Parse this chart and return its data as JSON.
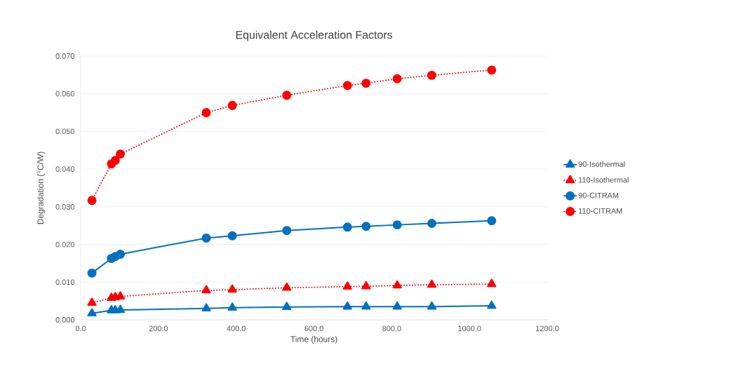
{
  "chart_data": {
    "type": "line",
    "title": "Equivalent Acceleration Factors",
    "xlabel": "Time (hours)",
    "ylabel": "Degradation (°C/W)",
    "x": [
      29,
      79,
      89,
      102,
      323,
      390,
      530,
      686,
      734,
      814,
      903,
      1057
    ],
    "series": [
      {
        "name": "90-Isothermal",
        "color": "#0070c0",
        "marker": "triangle",
        "line_style": "solid",
        "values": [
          0.0017,
          0.0025,
          0.0025,
          0.0026,
          0.003,
          0.0032,
          0.0034,
          0.0035,
          0.0035,
          0.0035,
          0.0035,
          0.0037
        ]
      },
      {
        "name": "110-Isothermal",
        "color": "#ff0000",
        "marker": "triangle",
        "line_style": "dotted",
        "values": [
          0.0045,
          0.0058,
          0.006,
          0.0062,
          0.0078,
          0.008,
          0.0085,
          0.0088,
          0.0089,
          0.0091,
          0.0093,
          0.0095
        ]
      },
      {
        "name": "90-CITRAM",
        "color": "#0070c0",
        "marker": "circle",
        "line_style": "solid",
        "values": [
          0.0124,
          0.0163,
          0.0168,
          0.0174,
          0.0217,
          0.0223,
          0.0237,
          0.0246,
          0.0248,
          0.0252,
          0.0256,
          0.0263
        ]
      },
      {
        "name": "110-CITRAM",
        "color": "#ff0000",
        "marker": "circle",
        "line_style": "dotted",
        "values": [
          0.0317,
          0.0414,
          0.0423,
          0.044,
          0.055,
          0.0569,
          0.0596,
          0.0622,
          0.0628,
          0.064,
          0.0649,
          0.0663
        ]
      }
    ],
    "xlim": [
      0,
      1200
    ],
    "xticks": [
      {
        "value": 0,
        "label": "0.0"
      },
      {
        "value": 200,
        "label": "200.0"
      },
      {
        "value": 400,
        "label": "400.0"
      },
      {
        "value": 600,
        "label": "600.0"
      },
      {
        "value": 800,
        "label": "800.0"
      },
      {
        "value": 1000,
        "label": "1000.0"
      },
      {
        "value": 1200,
        "label": "1200.0"
      }
    ],
    "ylim": [
      0,
      0.07
    ],
    "yticks": [
      {
        "value": 0,
        "label": "0.000"
      },
      {
        "value": 0.01,
        "label": "0.010"
      },
      {
        "value": 0.02,
        "label": "0.020"
      },
      {
        "value": 0.03,
        "label": "0.030"
      },
      {
        "value": 0.04,
        "label": "0.040"
      },
      {
        "value": 0.05,
        "label": "0.050"
      },
      {
        "value": 0.06,
        "label": "0.060"
      },
      {
        "value": 0.07,
        "label": "0.070"
      }
    ],
    "grid": "y",
    "legend": "right"
  }
}
